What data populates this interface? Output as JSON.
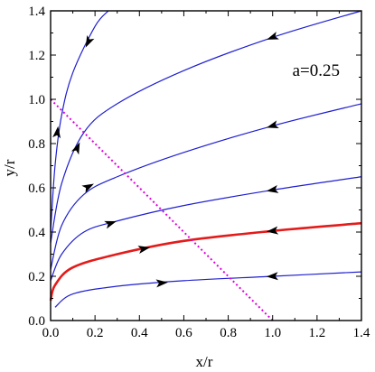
{
  "chart_data": {
    "type": "line",
    "xlabel": "x/r",
    "ylabel": "y/r",
    "xlim": [
      0,
      1.4
    ],
    "ylim": [
      0,
      1.4
    ],
    "x_ticks": [
      "0.0",
      "0.2",
      "0.4",
      "0.6",
      "0.8",
      "1.0",
      "1.2",
      "1.4"
    ],
    "y_ticks": [
      "0.0",
      "0.2",
      "0.4",
      "0.6",
      "0.8",
      "1.0",
      "1.2",
      "1.4"
    ],
    "annotation": "a=0.25",
    "grid": false,
    "colors": {
      "trajectories": "#1f1fd0",
      "separatrix": "#e31b1b",
      "dotted_line": "#e000e0"
    },
    "series": [
      {
        "style": "blue",
        "points": [
          [
            0.02,
            0.06
          ],
          [
            0.1,
            0.12
          ],
          [
            0.3,
            0.155
          ],
          [
            0.6,
            0.18
          ],
          [
            1.0,
            0.2
          ],
          [
            1.4,
            0.22
          ]
        ],
        "arrows": [
          {
            "at": [
              0.5,
              0.17
            ],
            "dir": "right"
          },
          {
            "at": [
              1.0,
              0.2
            ],
            "dir": "left"
          }
        ]
      },
      {
        "style": "red",
        "points": [
          [
            0.0,
            0.09
          ],
          [
            0.02,
            0.16
          ],
          [
            0.1,
            0.24
          ],
          [
            0.3,
            0.3
          ],
          [
            0.6,
            0.36
          ],
          [
            1.0,
            0.405
          ],
          [
            1.4,
            0.44
          ]
        ],
        "arrows": [
          {
            "at": [
              0.42,
              0.325
            ],
            "dir": "right"
          },
          {
            "at": [
              1.0,
              0.405
            ],
            "dir": "left"
          }
        ]
      },
      {
        "style": "blue",
        "points": [
          [
            0.0,
            0.18
          ],
          [
            0.05,
            0.3
          ],
          [
            0.15,
            0.4
          ],
          [
            0.3,
            0.45
          ],
          [
            0.6,
            0.52
          ],
          [
            1.0,
            0.59
          ],
          [
            1.4,
            0.65
          ]
        ],
        "arrows": [
          {
            "at": [
              0.27,
              0.44
            ],
            "dir": "right"
          },
          {
            "at": [
              1.0,
              0.59
            ],
            "dir": "left"
          }
        ]
      },
      {
        "style": "blue",
        "points": [
          [
            0.0,
            0.23
          ],
          [
            0.05,
            0.43
          ],
          [
            0.15,
            0.57
          ],
          [
            0.3,
            0.65
          ],
          [
            0.6,
            0.76
          ],
          [
            1.0,
            0.88
          ],
          [
            1.4,
            0.98
          ]
        ],
        "arrows": [
          {
            "at": [
              0.17,
              0.605
            ],
            "dir": "right"
          },
          {
            "at": [
              1.0,
              0.88
            ],
            "dir": "left"
          }
        ]
      },
      {
        "style": "blue",
        "points": [
          [
            0.0,
            0.35
          ],
          [
            0.05,
            0.62
          ],
          [
            0.15,
            0.85
          ],
          [
            0.3,
            0.98
          ],
          [
            0.6,
            1.13
          ],
          [
            1.0,
            1.28
          ],
          [
            1.4,
            1.4
          ]
        ],
        "arrows": [
          {
            "at": [
              0.12,
              0.78
            ],
            "dir": "right"
          },
          {
            "at": [
              1.0,
              1.28
            ],
            "dir": "left"
          }
        ]
      },
      {
        "style": "blue",
        "points": [
          [
            0.0,
            0.4
          ],
          [
            0.02,
            0.7
          ],
          [
            0.05,
            0.93
          ],
          [
            0.1,
            1.12
          ],
          [
            0.2,
            1.33
          ],
          [
            0.26,
            1.4
          ]
        ],
        "arrows": [
          {
            "at": [
              0.03,
              0.85
            ],
            "dir": "up"
          },
          {
            "at": [
              0.17,
              1.26
            ],
            "dir": "down"
          }
        ]
      },
      {
        "style": "magenta-dotted",
        "points": [
          [
            0.0,
            1.0
          ],
          [
            1.0,
            0.0
          ]
        ],
        "arrows": []
      }
    ]
  }
}
